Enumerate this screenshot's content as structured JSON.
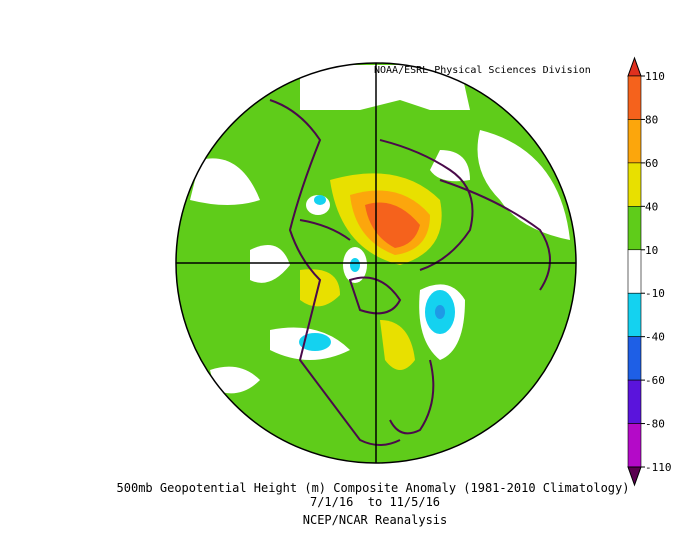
{
  "map": {
    "credit": "NOAA/ESRL Physical Sciences Division",
    "title": "500mb Geopotential Height (m) Composite Anomaly (1981-2010 Climatology)",
    "dates": "7/1/16  to 11/5/16",
    "source": "NCEP/NCAR Reanalysis"
  },
  "colorbar": {
    "levels": [
      110,
      80,
      60,
      40,
      10,
      -10,
      -40,
      -60,
      -80,
      -110
    ],
    "colors": [
      "#e0301e",
      "#f5621c",
      "#fca60c",
      "#e8e000",
      "#5fcc1a",
      "#ffffff",
      "#14d2f0",
      "#1e5fe6",
      "#5a14dc",
      "#b40ac8",
      "#5a0050"
    ]
  }
}
